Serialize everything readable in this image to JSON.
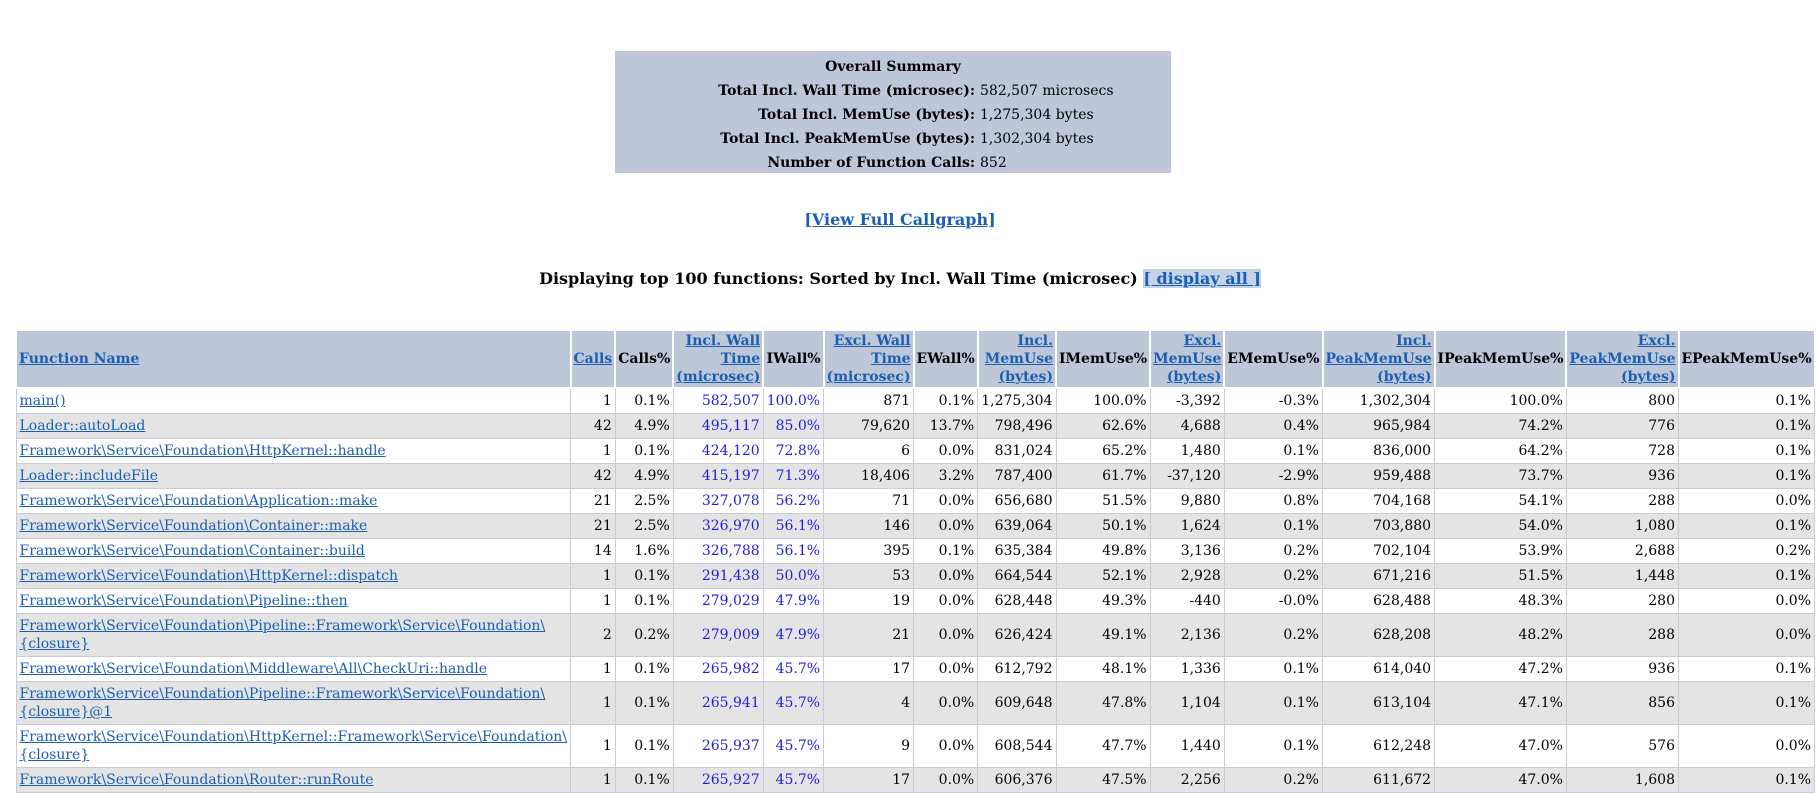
{
  "summary": {
    "title": "Overall Summary",
    "rows": [
      {
        "label": "Total Incl. Wall Time (microsec):",
        "value": "582,507 microsecs"
      },
      {
        "label": "Total Incl. MemUse (bytes):",
        "value": "1,275,304 bytes"
      },
      {
        "label": "Total Incl. PeakMemUse (bytes):",
        "value": "1,302,304 bytes"
      },
      {
        "label": "Number of Function Calls:",
        "value": "852"
      }
    ]
  },
  "callgraph_link": "[View Full Callgraph]",
  "displaying": {
    "text": "Displaying top 100 functions: Sorted by Incl. Wall Time (microsec) ",
    "link": "[ display all ]"
  },
  "table": {
    "headers": {
      "function_name": "Function Name",
      "calls": "Calls",
      "calls_pct": "Calls%",
      "incl_wall_1": "Incl. Wall Time",
      "incl_wall_2": "(microsec)",
      "iwall_pct": "IWall%",
      "excl_wall_1": "Excl. Wall Time",
      "excl_wall_2": "(microsec)",
      "ewall_pct": "EWall%",
      "incl_mem_1": "Incl.",
      "incl_mem_2": "MemUse",
      "incl_mem_3": "(bytes)",
      "imem_pct": "IMemUse%",
      "excl_mem_1": "Excl.",
      "excl_mem_2": "MemUse",
      "excl_mem_3": "(bytes)",
      "emem_pct": "EMemUse%",
      "incl_peak_1": "Incl.",
      "incl_peak_2": "PeakMemUse",
      "incl_peak_3": "(bytes)",
      "ipeak_pct": "IPeakMemUse%",
      "excl_peak_1": "Excl.",
      "excl_peak_2": "PeakMemUse",
      "excl_peak_3": "(bytes)",
      "epeak_pct": "EPeakMemUse%"
    },
    "rows": [
      {
        "name": "main()",
        "calls": "1",
        "calls_pct": "0.1%",
        "iwall": "582,507",
        "iwall_pct": "100.0%",
        "ewall": "871",
        "ewall_pct": "0.1%",
        "imem": "1,275,304",
        "imem_pct": "100.0%",
        "emem": "-3,392",
        "emem_pct": "-0.3%",
        "ipeak": "1,302,304",
        "ipeak_pct": "100.0%",
        "epeak": "800",
        "epeak_pct": "0.1%"
      },
      {
        "name": "Loader::autoLoad",
        "calls": "42",
        "calls_pct": "4.9%",
        "iwall": "495,117",
        "iwall_pct": "85.0%",
        "ewall": "79,620",
        "ewall_pct": "13.7%",
        "imem": "798,496",
        "imem_pct": "62.6%",
        "emem": "4,688",
        "emem_pct": "0.4%",
        "ipeak": "965,984",
        "ipeak_pct": "74.2%",
        "epeak": "776",
        "epeak_pct": "0.1%"
      },
      {
        "name": "Framework\\Service\\Foundation\\HttpKernel::handle",
        "calls": "1",
        "calls_pct": "0.1%",
        "iwall": "424,120",
        "iwall_pct": "72.8%",
        "ewall": "6",
        "ewall_pct": "0.0%",
        "imem": "831,024",
        "imem_pct": "65.2%",
        "emem": "1,480",
        "emem_pct": "0.1%",
        "ipeak": "836,000",
        "ipeak_pct": "64.2%",
        "epeak": "728",
        "epeak_pct": "0.1%"
      },
      {
        "name": "Loader::includeFile",
        "calls": "42",
        "calls_pct": "4.9%",
        "iwall": "415,197",
        "iwall_pct": "71.3%",
        "ewall": "18,406",
        "ewall_pct": "3.2%",
        "imem": "787,400",
        "imem_pct": "61.7%",
        "emem": "-37,120",
        "emem_pct": "-2.9%",
        "ipeak": "959,488",
        "ipeak_pct": "73.7%",
        "epeak": "936",
        "epeak_pct": "0.1%"
      },
      {
        "name": "Framework\\Service\\Foundation\\Application::make",
        "calls": "21",
        "calls_pct": "2.5%",
        "iwall": "327,078",
        "iwall_pct": "56.2%",
        "ewall": "71",
        "ewall_pct": "0.0%",
        "imem": "656,680",
        "imem_pct": "51.5%",
        "emem": "9,880",
        "emem_pct": "0.8%",
        "ipeak": "704,168",
        "ipeak_pct": "54.1%",
        "epeak": "288",
        "epeak_pct": "0.0%"
      },
      {
        "name": "Framework\\Service\\Foundation\\Container::make",
        "calls": "21",
        "calls_pct": "2.5%",
        "iwall": "326,970",
        "iwall_pct": "56.1%",
        "ewall": "146",
        "ewall_pct": "0.0%",
        "imem": "639,064",
        "imem_pct": "50.1%",
        "emem": "1,624",
        "emem_pct": "0.1%",
        "ipeak": "703,880",
        "ipeak_pct": "54.0%",
        "epeak": "1,080",
        "epeak_pct": "0.1%"
      },
      {
        "name": "Framework\\Service\\Foundation\\Container::build",
        "calls": "14",
        "calls_pct": "1.6%",
        "iwall": "326,788",
        "iwall_pct": "56.1%",
        "ewall": "395",
        "ewall_pct": "0.1%",
        "imem": "635,384",
        "imem_pct": "49.8%",
        "emem": "3,136",
        "emem_pct": "0.2%",
        "ipeak": "702,104",
        "ipeak_pct": "53.9%",
        "epeak": "2,688",
        "epeak_pct": "0.2%"
      },
      {
        "name": "Framework\\Service\\Foundation\\HttpKernel::dispatch",
        "calls": "1",
        "calls_pct": "0.1%",
        "iwall": "291,438",
        "iwall_pct": "50.0%",
        "ewall": "53",
        "ewall_pct": "0.0%",
        "imem": "664,544",
        "imem_pct": "52.1%",
        "emem": "2,928",
        "emem_pct": "0.2%",
        "ipeak": "671,216",
        "ipeak_pct": "51.5%",
        "epeak": "1,448",
        "epeak_pct": "0.1%"
      },
      {
        "name": "Framework\\Service\\Foundation\\Pipeline::then",
        "calls": "1",
        "calls_pct": "0.1%",
        "iwall": "279,029",
        "iwall_pct": "47.9%",
        "ewall": "19",
        "ewall_pct": "0.0%",
        "imem": "628,448",
        "imem_pct": "49.3%",
        "emem": "-440",
        "emem_pct": "-0.0%",
        "ipeak": "628,488",
        "ipeak_pct": "48.3%",
        "epeak": "280",
        "epeak_pct": "0.0%"
      },
      {
        "name": "Framework\\Service\\Foundation\\Pipeline::Framework\\Service\\Foundation\\{closure}",
        "calls": "2",
        "calls_pct": "0.2%",
        "iwall": "279,009",
        "iwall_pct": "47.9%",
        "ewall": "21",
        "ewall_pct": "0.0%",
        "imem": "626,424",
        "imem_pct": "49.1%",
        "emem": "2,136",
        "emem_pct": "0.2%",
        "ipeak": "628,208",
        "ipeak_pct": "48.2%",
        "epeak": "288",
        "epeak_pct": "0.0%"
      },
      {
        "name": "Framework\\Service\\Foundation\\Middleware\\All\\CheckUri::handle",
        "calls": "1",
        "calls_pct": "0.1%",
        "iwall": "265,982",
        "iwall_pct": "45.7%",
        "ewall": "17",
        "ewall_pct": "0.0%",
        "imem": "612,792",
        "imem_pct": "48.1%",
        "emem": "1,336",
        "emem_pct": "0.1%",
        "ipeak": "614,040",
        "ipeak_pct": "47.2%",
        "epeak": "936",
        "epeak_pct": "0.1%"
      },
      {
        "name": "Framework\\Service\\Foundation\\Pipeline::Framework\\Service\\Foundation\\{closure}@1",
        "calls": "1",
        "calls_pct": "0.1%",
        "iwall": "265,941",
        "iwall_pct": "45.7%",
        "ewall": "4",
        "ewall_pct": "0.0%",
        "imem": "609,648",
        "imem_pct": "47.8%",
        "emem": "1,104",
        "emem_pct": "0.1%",
        "ipeak": "613,104",
        "ipeak_pct": "47.1%",
        "epeak": "856",
        "epeak_pct": "0.1%"
      },
      {
        "name": "Framework\\Service\\Foundation\\HttpKernel::Framework\\Service\\Foundation\\{closure}",
        "calls": "1",
        "calls_pct": "0.1%",
        "iwall": "265,937",
        "iwall_pct": "45.7%",
        "ewall": "9",
        "ewall_pct": "0.0%",
        "imem": "608,544",
        "imem_pct": "47.7%",
        "emem": "1,440",
        "emem_pct": "0.1%",
        "ipeak": "612,248",
        "ipeak_pct": "47.0%",
        "epeak": "576",
        "epeak_pct": "0.0%"
      },
      {
        "name": "Framework\\Service\\Foundation\\Router::runRoute",
        "calls": "1",
        "calls_pct": "0.1%",
        "iwall": "265,927",
        "iwall_pct": "45.7%",
        "ewall": "17",
        "ewall_pct": "0.0%",
        "imem": "606,376",
        "imem_pct": "47.5%",
        "emem": "2,256",
        "emem_pct": "0.2%",
        "ipeak": "611,672",
        "ipeak_pct": "47.0%",
        "epeak": "1,608",
        "epeak_pct": "0.1%"
      }
    ]
  }
}
